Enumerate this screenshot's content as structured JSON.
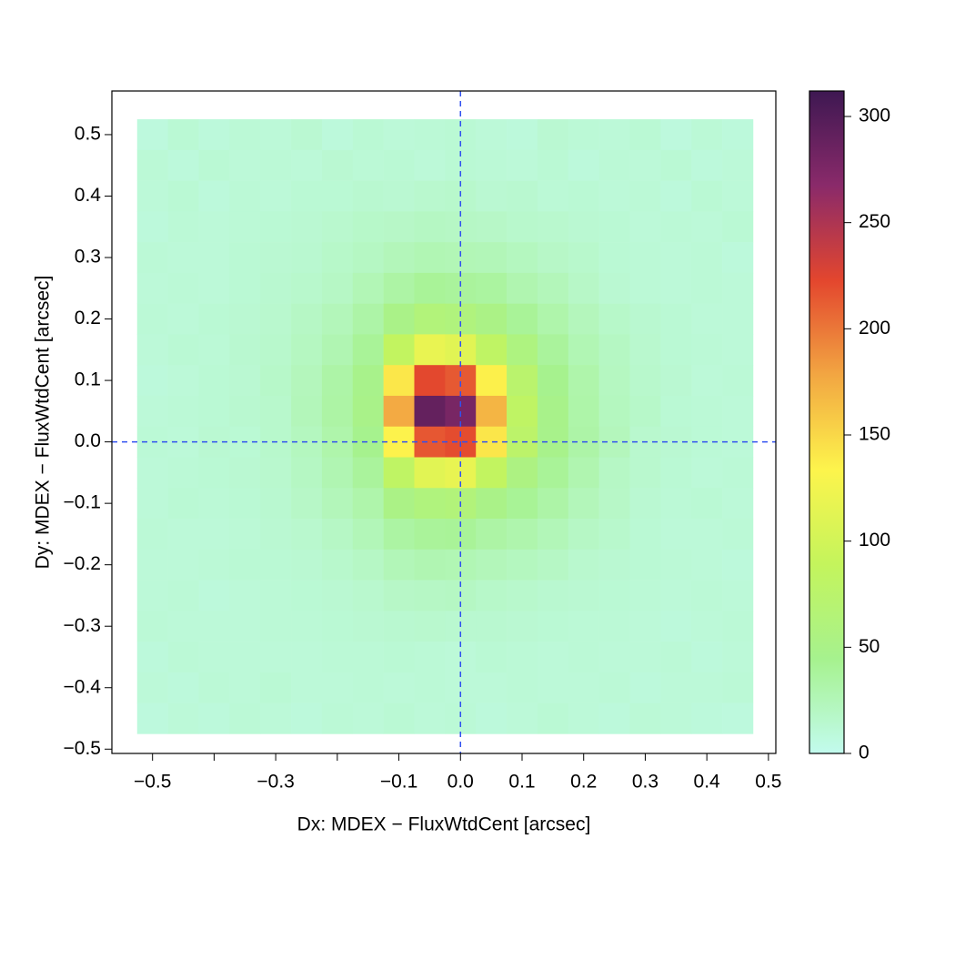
{
  "chart_data": {
    "type": "heatmap",
    "x_label": "Dx: MDEX − FluxWtdCent [arcsec]",
    "y_label": "Dy: MDEX − FluxWtdCent [arcsec]",
    "xlim": [
      -0.566,
      0.512
    ],
    "ylim": [
      -0.507,
      0.571
    ],
    "xticks": [
      {
        "value": -0.5,
        "label": "−0.5"
      },
      {
        "value": -0.3,
        "label": "−0.3"
      },
      {
        "value": -0.1,
        "label": "−0.1"
      },
      {
        "value": 0,
        "label": "0.0"
      },
      0.1,
      0.2,
      0.3,
      0.4,
      0.5
    ],
    "xticks_minor": [
      -0.4,
      -0.2
    ],
    "yticks": [
      0.5,
      0.4,
      0.3,
      0.2,
      0.1,
      {
        "value": 0,
        "label": "0.0"
      },
      {
        "value": -0.1,
        "label": "−0.1"
      },
      {
        "value": -0.2,
        "label": "−0.2"
      },
      {
        "value": -0.3,
        "label": "−0.3"
      },
      {
        "value": -0.4,
        "label": "−0.4"
      },
      {
        "value": -0.5,
        "label": "−0.5"
      }
    ],
    "xbins": [
      -0.525,
      -0.475,
      -0.425,
      -0.375,
      -0.325,
      -0.275,
      -0.225,
      -0.175,
      -0.125,
      -0.075,
      -0.025,
      0.025,
      0.075,
      0.125,
      0.175,
      0.225,
      0.275,
      0.325,
      0.375,
      0.425,
      0.475
    ],
    "ybins": [
      0.525,
      0.475,
      0.425,
      0.375,
      0.325,
      0.275,
      0.225,
      0.175,
      0.125,
      0.075,
      0.025,
      -0.025,
      -0.075,
      -0.125,
      -0.175,
      -0.225,
      -0.275,
      -0.325,
      -0.375,
      -0.425,
      -0.475
    ],
    "z": [
      [
        8,
        12,
        9,
        11,
        10,
        13,
        9,
        12,
        10,
        11,
        12,
        10,
        9,
        13,
        11,
        10,
        12,
        8,
        11,
        9
      ],
      [
        11,
        9,
        12,
        10,
        11,
        10,
        13,
        11,
        12,
        10,
        12,
        11,
        10,
        12,
        9,
        11,
        10,
        12,
        9,
        10
      ],
      [
        10,
        12,
        9,
        11,
        10,
        12,
        12,
        14,
        13,
        15,
        16,
        13,
        14,
        11,
        12,
        10,
        11,
        9,
        12,
        10
      ],
      [
        9,
        11,
        10,
        11,
        12,
        13,
        15,
        17,
        18,
        20,
        19,
        18,
        16,
        15,
        13,
        12,
        10,
        11,
        10,
        12
      ],
      [
        11,
        10,
        10,
        12,
        13,
        14,
        17,
        20,
        24,
        27,
        26,
        25,
        22,
        18,
        16,
        12,
        11,
        10,
        11,
        9
      ],
      [
        10,
        11,
        10,
        12,
        14,
        16,
        19,
        26,
        34,
        40,
        38,
        36,
        29,
        24,
        18,
        13,
        11,
        10,
        11,
        10
      ],
      [
        11,
        10,
        12,
        13,
        15,
        19,
        24,
        33,
        50,
        62,
        60,
        52,
        40,
        31,
        23,
        17,
        14,
        12,
        10,
        10
      ],
      [
        10,
        12,
        11,
        14,
        16,
        21,
        28,
        40,
        86,
        118,
        112,
        82,
        57,
        38,
        27,
        20,
        15,
        12,
        11,
        10
      ],
      [
        9,
        10,
        12,
        13,
        17,
        23,
        33,
        47,
        141,
        222,
        214,
        136,
        74,
        45,
        31,
        21,
        16,
        13,
        10,
        11
      ],
      [
        10,
        11,
        12,
        14,
        16,
        24,
        34,
        49,
        176,
        290,
        278,
        170,
        82,
        48,
        32,
        22,
        17,
        12,
        11,
        10
      ],
      [
        11,
        10,
        13,
        12,
        16,
        22,
        31,
        45,
        135,
        215,
        220,
        142,
        77,
        47,
        33,
        23,
        15,
        13,
        11,
        10
      ],
      [
        10,
        11,
        12,
        13,
        15,
        20,
        28,
        38,
        82,
        112,
        117,
        86,
        55,
        40,
        29,
        19,
        15,
        12,
        10,
        11
      ],
      [
        10,
        12,
        11,
        12,
        14,
        18,
        24,
        31,
        52,
        60,
        62,
        50,
        41,
        33,
        24,
        18,
        13,
        11,
        12,
        10
      ],
      [
        11,
        10,
        10,
        11,
        13,
        15,
        19,
        25,
        35,
        39,
        40,
        34,
        30,
        25,
        19,
        16,
        12,
        10,
        10,
        11
      ],
      [
        10,
        10,
        11,
        12,
        12,
        13,
        16,
        19,
        25,
        28,
        27,
        24,
        22,
        19,
        15,
        13,
        12,
        11,
        10,
        9
      ],
      [
        10,
        11,
        9,
        10,
        11,
        12,
        13,
        15,
        18,
        19,
        20,
        17,
        16,
        14,
        13,
        12,
        11,
        10,
        11,
        10
      ],
      [
        11,
        10,
        10,
        10,
        11,
        11,
        12,
        13,
        14,
        15,
        14,
        14,
        13,
        12,
        11,
        11,
        10,
        9,
        10,
        11
      ],
      [
        9,
        11,
        10,
        10,
        10,
        10,
        11,
        11,
        12,
        11,
        10,
        12,
        11,
        10,
        11,
        10,
        10,
        11,
        9,
        10
      ],
      [
        10,
        9,
        11,
        10,
        12,
        10,
        10,
        11,
        10,
        11,
        10,
        10,
        11,
        10,
        10,
        11,
        9,
        10,
        10,
        11
      ],
      [
        8,
        10,
        9,
        11,
        10,
        9,
        11,
        10,
        12,
        10,
        11,
        9,
        10,
        12,
        10,
        9,
        11,
        10,
        9,
        8
      ]
    ],
    "zlim": [
      0,
      312
    ],
    "zticks": [
      0,
      50,
      100,
      150,
      200,
      250,
      300
    ],
    "colors": [
      "#c2fbee",
      "#a6f28e",
      "#c4f45c",
      "#fdf44c",
      "#f2a642",
      "#e3462e",
      "#8a2a6a",
      "#3e1852"
    ],
    "reference_lines": {
      "x": 0,
      "y": 0,
      "color": "#3050f0"
    }
  }
}
